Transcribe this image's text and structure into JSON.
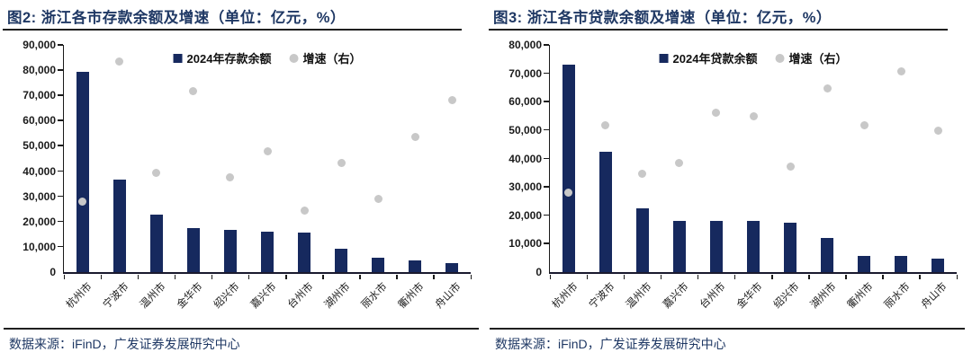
{
  "colors": {
    "bar": "#16295E",
    "dot": "#C8C8C8",
    "title_text": "#1F3864",
    "source_text": "#1F3864",
    "axis": "#1A1A1A"
  },
  "chart_data": [
    {
      "type": "bar",
      "title": "图2:  浙江各市存款余额及增速（单位：亿元，%）",
      "legend": [
        {
          "label": "2024年存款余额",
          "marker": "square",
          "color": "#16295E"
        },
        {
          "label": "增速（右）",
          "marker": "circle",
          "color": "#C8C8C8"
        }
      ],
      "categories": [
        "杭州市",
        "宁波市",
        "温州市",
        "金华市",
        "绍兴市",
        "嘉兴市",
        "台州市",
        "湖州市",
        "丽水市",
        "衢州市",
        "舟山市"
      ],
      "series": [
        {
          "name": "2024年存款余额",
          "type": "bar",
          "axis": "left",
          "values": [
            79500,
            36500,
            22600,
            17300,
            16700,
            16000,
            15800,
            9400,
            5800,
            4800,
            3700
          ]
        },
        {
          "name": "增速（右）",
          "type": "scatter",
          "axis": "right",
          "right_axis_labels_visible": false,
          "values_on_left_axis_scale": [
            27800,
            83500,
            39400,
            71700,
            37400,
            47700,
            24500,
            43200,
            29100,
            53400,
            68300
          ]
        }
      ],
      "y_axis": {
        "min": 0,
        "max": 90000,
        "step": 10000,
        "tick_labels": [
          "0",
          "10,000",
          "20,000",
          "30,000",
          "40,000",
          "50,000",
          "60,000",
          "70,000",
          "80,000",
          "90,000"
        ]
      },
      "grid": "off",
      "legend_position": "top-center-inside",
      "source": "数据来源：iFinD，广发证券发展研究中心"
    },
    {
      "type": "bar",
      "title": "图3:  浙江各市贷款余额及增速（单位：亿元，%）",
      "legend": [
        {
          "label": "2024年贷款余额",
          "marker": "square",
          "color": "#16295E"
        },
        {
          "label": "增速（右）",
          "marker": "circle",
          "color": "#C8C8C8"
        }
      ],
      "categories": [
        "杭州市",
        "宁波市",
        "温州市",
        "嘉兴市",
        "台州市",
        "金华市",
        "绍兴市",
        "湖州市",
        "衢州市",
        "丽水市",
        "舟山市"
      ],
      "series": [
        {
          "name": "2024年贷款余额",
          "type": "bar",
          "axis": "left",
          "values": [
            73200,
            42500,
            22600,
            17900,
            17900,
            17900,
            17500,
            12100,
            5600,
            5600,
            4700
          ]
        },
        {
          "name": "增速（右）",
          "type": "scatter",
          "axis": "right",
          "right_axis_labels_visible": false,
          "values_on_left_axis_scale": [
            28100,
            51800,
            34600,
            38300,
            56200,
            55000,
            37300,
            64600,
            51700,
            70800,
            49900
          ]
        }
      ],
      "y_axis": {
        "min": 0,
        "max": 80000,
        "step": 10000,
        "tick_labels": [
          "0",
          "10,000",
          "20,000",
          "30,000",
          "40,000",
          "50,000",
          "60,000",
          "70,000",
          "80,000"
        ]
      },
      "grid": "off",
      "legend_position": "top-center-inside",
      "source": "数据来源：iFinD，广发证券发展研究中心"
    }
  ]
}
